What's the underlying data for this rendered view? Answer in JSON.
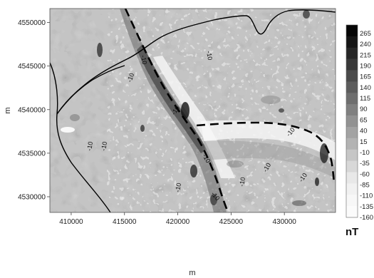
{
  "map": {
    "xaxis": {
      "label": "m",
      "ticks": [
        {
          "value": 410000,
          "label": "410000"
        },
        {
          "value": 415000,
          "label": "415000"
        },
        {
          "value": 420000,
          "label": "420000"
        },
        {
          "value": 425000,
          "label": "425000"
        },
        {
          "value": 430000,
          "label": "430000"
        }
      ]
    },
    "yaxis": {
      "label": "m",
      "ticks": [
        {
          "value": 4530000,
          "label": "4530000"
        },
        {
          "value": 4535000,
          "label": "4535000"
        },
        {
          "value": 4540000,
          "label": "4540000"
        },
        {
          "value": 4545000,
          "label": "4545000"
        },
        {
          "value": 4550000,
          "label": "4550000"
        }
      ]
    },
    "contour_labels": [
      "-10",
      "-10",
      "-10",
      "-10",
      "-10",
      "-10",
      "-10",
      "-10",
      "-10",
      "-10",
      "-10",
      "-10",
      "-10"
    ],
    "colorbar": {
      "unit": "nT",
      "levels": [
        "265",
        "240",
        "215",
        "190",
        "165",
        "140",
        "115",
        "90",
        "65",
        "40",
        "15",
        "-10",
        "-35",
        "-60",
        "-85",
        "-110",
        "-135",
        "-160"
      ],
      "colors": [
        "#050505",
        "#151515",
        "#262626",
        "#383838",
        "#4a4a4a",
        "#5c5c5c",
        "#6e6e6e",
        "#808080",
        "#929292",
        "#a3a3a3",
        "#b3b3b3",
        "#c6c6c6",
        "#d8d8d8",
        "#e8e8e8",
        "#f1f1f1",
        "#f7f7f7",
        "#fbfbfb"
      ]
    }
  }
}
